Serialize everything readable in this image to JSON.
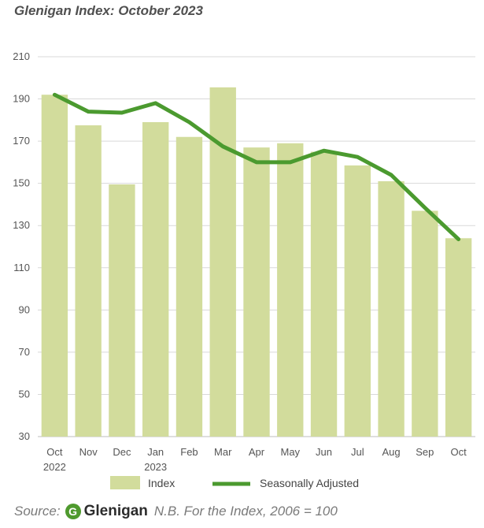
{
  "chart_data": {
    "type": "bar",
    "title": "Glenigan Index: October 2023",
    "categories": [
      "Oct",
      "Nov",
      "Dec",
      "Jan",
      "Feb",
      "Mar",
      "Apr",
      "May",
      "Jun",
      "Jul",
      "Aug",
      "Sep",
      "Oct"
    ],
    "category_years": [
      "2022",
      "",
      "",
      "2023",
      "",
      "",
      "",
      "",
      "",
      "",
      "",
      "",
      ""
    ],
    "series": [
      {
        "name": "Index",
        "type": "bar",
        "color": "#d2dc9c",
        "values": [
          192,
          177.5,
          149.5,
          179,
          172,
          195.5,
          167,
          169,
          165,
          158.5,
          151,
          137,
          124
        ]
      },
      {
        "name": "Seasonally Adjusted",
        "type": "line",
        "color": "#4b9a2f",
        "values": [
          192,
          184,
          183.5,
          188,
          179,
          167.5,
          160,
          160,
          165.5,
          162.5,
          154,
          138.5,
          123.5
        ]
      }
    ],
    "ylim": [
      30,
      210
    ],
    "yticks": [
      "30",
      "50",
      "70",
      "90",
      "110",
      "130",
      "150",
      "170",
      "190",
      "210"
    ],
    "grid": true,
    "legend_position": "bottom"
  },
  "source": {
    "label": "Source:",
    "logo_letter": "G",
    "logo_text": "Glenigan",
    "note": "N.B. For the Index, 2006 = 100"
  }
}
